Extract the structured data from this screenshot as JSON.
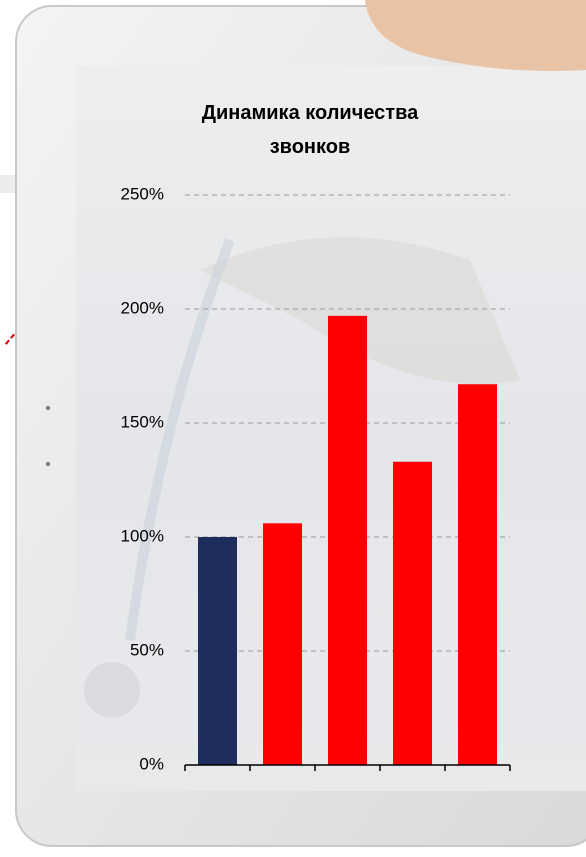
{
  "chart_data": {
    "type": "bar",
    "title": "Динамика количества звонков",
    "categories": [
      null,
      null,
      null,
      null,
      null
    ],
    "values": [
      100,
      106,
      197,
      133,
      167
    ],
    "colors": [
      "#1f2d5c",
      "#ff0000",
      "#ff0000",
      "#ff0000",
      "#ff0000"
    ],
    "ylim": [
      0,
      250
    ],
    "yticks": [
      {
        "value": 0,
        "label": "0%"
      },
      {
        "value": 50,
        "label": "50%"
      },
      {
        "value": 100,
        "label": "100%"
      },
      {
        "value": 150,
        "label": "150%"
      },
      {
        "value": 200,
        "label": "200%"
      },
      {
        "value": 250,
        "label": "250%"
      }
    ],
    "grid": true
  }
}
